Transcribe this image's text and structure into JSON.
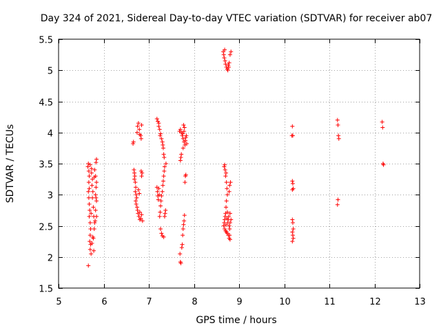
{
  "chart_data": {
    "type": "scatter",
    "title": "Day 324 of 2021, Sidereal Day-to-day VTEC variation (SDTVAR) for receiver ab07",
    "xlabel": "GPS time / hours",
    "ylabel": "SDTVAR / TECUs",
    "xlim": [
      5,
      13
    ],
    "ylim": [
      1.5,
      5.5
    ],
    "xticks": [
      5,
      6,
      7,
      8,
      9,
      10,
      11,
      12,
      13
    ],
    "xtick_labels": [
      "5",
      "6",
      "7",
      "8",
      "9",
      "10",
      "11",
      "12",
      "13"
    ],
    "yticks": [
      1.5,
      2,
      2.5,
      3,
      3.5,
      4,
      4.5,
      5,
      5.5
    ],
    "ytick_labels": [
      "1.5",
      "2",
      "2.5",
      "3",
      "3.5",
      "4",
      "4.5",
      "5",
      "5.5"
    ],
    "grid": true,
    "marker": "+",
    "color": "#ff0000",
    "series": [
      {
        "name": "SDTVAR",
        "points": [
          [
            5.65,
            3.45
          ],
          [
            5.66,
            3.5
          ],
          [
            5.67,
            3.38
          ],
          [
            5.68,
            3.3
          ],
          [
            5.67,
            3.2
          ],
          [
            5.66,
            3.05
          ],
          [
            5.67,
            2.95
          ],
          [
            5.68,
            2.85
          ],
          [
            5.69,
            2.75
          ],
          [
            5.68,
            2.65
          ],
          [
            5.7,
            2.55
          ],
          [
            5.71,
            2.45
          ],
          [
            5.7,
            2.35
          ],
          [
            5.69,
            2.25
          ],
          [
            5.71,
            2.2
          ],
          [
            5.7,
            2.12
          ],
          [
            5.72,
            2.05
          ],
          [
            5.66,
            1.86
          ],
          [
            5.7,
            3.48
          ],
          [
            5.73,
            3.35
          ],
          [
            5.75,
            3.25
          ],
          [
            5.74,
            3.15
          ],
          [
            5.76,
            3.05
          ],
          [
            5.75,
            2.95
          ],
          [
            5.77,
            2.8
          ],
          [
            5.78,
            2.65
          ],
          [
            5.8,
            2.55
          ],
          [
            5.79,
            2.45
          ],
          [
            5.77,
            2.3
          ],
          [
            5.74,
            2.22
          ],
          [
            5.78,
            2.1
          ],
          [
            5.8,
            3.4
          ],
          [
            5.82,
            3.3
          ],
          [
            5.84,
            3.2
          ],
          [
            5.83,
            3.12
          ],
          [
            5.82,
            3.0
          ],
          [
            5.84,
            2.9
          ],
          [
            5.82,
            2.75
          ],
          [
            5.84,
            2.65
          ],
          [
            5.83,
            3.52
          ],
          [
            5.84,
            3.57
          ],
          [
            5.76,
            2.32
          ],
          [
            5.73,
            3.42
          ],
          [
            5.79,
            3.28
          ],
          [
            5.81,
            2.58
          ],
          [
            5.72,
            2.7
          ],
          [
            5.68,
            3.1
          ],
          [
            5.83,
            2.95
          ],
          [
            6.65,
            3.82
          ],
          [
            6.66,
            3.85
          ],
          [
            6.67,
            3.4
          ],
          [
            6.68,
            3.35
          ],
          [
            6.69,
            3.3
          ],
          [
            6.7,
            3.2
          ],
          [
            6.71,
            3.12
          ],
          [
            6.7,
            3.05
          ],
          [
            6.72,
            3.0
          ],
          [
            6.73,
            2.95
          ],
          [
            6.72,
            2.85
          ],
          [
            6.74,
            2.8
          ],
          [
            6.75,
            2.75
          ],
          [
            6.76,
            2.7
          ],
          [
            6.78,
            2.65
          ],
          [
            6.8,
            2.6
          ],
          [
            6.82,
            2.62
          ],
          [
            6.84,
            2.68
          ],
          [
            6.75,
            4.1
          ],
          [
            6.77,
            4.15
          ],
          [
            6.79,
            4.05
          ],
          [
            6.8,
            3.97
          ],
          [
            6.82,
            3.95
          ],
          [
            6.83,
            3.9
          ],
          [
            6.84,
            4.12
          ],
          [
            6.85,
            3.35
          ],
          [
            6.84,
            3.3
          ],
          [
            6.83,
            3.38
          ],
          [
            6.77,
            3.08
          ],
          [
            6.79,
            3.02
          ],
          [
            6.74,
            4.0
          ],
          [
            6.68,
            3.25
          ],
          [
            6.71,
            2.9
          ],
          [
            6.8,
            2.72
          ],
          [
            6.86,
            2.58
          ],
          [
            7.18,
            4.22
          ],
          [
            7.2,
            4.18
          ],
          [
            7.22,
            4.1
          ],
          [
            7.24,
            4.05
          ],
          [
            7.26,
            3.98
          ],
          [
            7.28,
            3.9
          ],
          [
            7.3,
            3.85
          ],
          [
            7.31,
            3.8
          ],
          [
            7.32,
            3.75
          ],
          [
            7.33,
            3.65
          ],
          [
            7.34,
            3.6
          ],
          [
            7.35,
            3.45
          ],
          [
            7.34,
            3.38
          ],
          [
            7.33,
            3.3
          ],
          [
            7.32,
            3.22
          ],
          [
            7.31,
            3.15
          ],
          [
            7.3,
            3.05
          ],
          [
            7.28,
            2.98
          ],
          [
            7.27,
            2.9
          ],
          [
            7.26,
            2.82
          ],
          [
            7.25,
            2.72
          ],
          [
            7.24,
            2.65
          ],
          [
            7.26,
            2.45
          ],
          [
            7.28,
            2.38
          ],
          [
            7.3,
            2.34
          ],
          [
            7.33,
            2.32
          ],
          [
            7.18,
            3.12
          ],
          [
            7.19,
            3.05
          ],
          [
            7.2,
            2.98
          ],
          [
            7.21,
            2.92
          ],
          [
            7.22,
            3.1
          ],
          [
            7.23,
            3.0
          ],
          [
            7.36,
            2.7
          ],
          [
            7.37,
            2.75
          ],
          [
            7.35,
            2.65
          ],
          [
            7.38,
            3.5
          ],
          [
            7.22,
            4.15
          ],
          [
            7.25,
            3.95
          ],
          [
            7.68,
            4.02
          ],
          [
            7.7,
            4.05
          ],
          [
            7.72,
            4.0
          ],
          [
            7.74,
            3.95
          ],
          [
            7.76,
            3.9
          ],
          [
            7.78,
            3.85
          ],
          [
            7.8,
            3.8
          ],
          [
            7.79,
            4.08
          ],
          [
            7.77,
            4.12
          ],
          [
            7.75,
            3.98
          ],
          [
            7.82,
            3.92
          ],
          [
            7.81,
            3.87
          ],
          [
            7.83,
            3.95
          ],
          [
            7.72,
            3.65
          ],
          [
            7.71,
            3.6
          ],
          [
            7.7,
            3.55
          ],
          [
            7.69,
            2.05
          ],
          [
            7.7,
            1.92
          ],
          [
            7.71,
            1.9
          ],
          [
            7.73,
            2.15
          ],
          [
            7.74,
            2.2
          ],
          [
            7.75,
            2.35
          ],
          [
            7.76,
            2.45
          ],
          [
            7.77,
            2.52
          ],
          [
            7.78,
            2.58
          ],
          [
            7.79,
            2.67
          ],
          [
            7.8,
            3.2
          ],
          [
            7.81,
            3.3
          ],
          [
            7.82,
            3.32
          ],
          [
            7.76,
            3.75
          ],
          [
            7.78,
            4.02
          ],
          [
            7.84,
            3.82
          ],
          [
            8.65,
            5.3
          ],
          [
            8.66,
            5.25
          ],
          [
            8.67,
            5.2
          ],
          [
            8.68,
            5.33
          ],
          [
            8.7,
            5.1
          ],
          [
            8.72,
            5.05
          ],
          [
            8.74,
            5.02
          ],
          [
            8.76,
            5.08
          ],
          [
            8.78,
            5.12
          ],
          [
            8.8,
            5.25
          ],
          [
            8.82,
            5.3
          ],
          [
            8.68,
            3.48
          ],
          [
            8.69,
            3.4
          ],
          [
            8.7,
            3.3
          ],
          [
            8.72,
            3.2
          ],
          [
            8.73,
            3.1
          ],
          [
            8.74,
            3.0
          ],
          [
            8.72,
            2.9
          ],
          [
            8.71,
            2.8
          ],
          [
            8.7,
            2.7
          ],
          [
            8.69,
            2.65
          ],
          [
            8.68,
            2.6
          ],
          [
            8.67,
            2.55
          ],
          [
            8.66,
            2.5
          ],
          [
            8.68,
            2.45
          ],
          [
            8.7,
            2.42
          ],
          [
            8.72,
            2.4
          ],
          [
            8.74,
            2.38
          ],
          [
            8.76,
            2.35
          ],
          [
            8.78,
            2.3
          ],
          [
            8.8,
            2.28
          ],
          [
            8.75,
            2.55
          ],
          [
            8.76,
            2.6
          ],
          [
            8.77,
            2.65
          ],
          [
            8.78,
            2.5
          ],
          [
            8.79,
            2.45
          ],
          [
            8.8,
            2.55
          ],
          [
            8.78,
            3.05
          ],
          [
            8.79,
            3.15
          ],
          [
            8.81,
            3.2
          ],
          [
            8.74,
            2.72
          ],
          [
            8.73,
            2.62
          ],
          [
            8.71,
            2.52
          ],
          [
            8.69,
            5.15
          ],
          [
            8.75,
            5.0
          ],
          [
            8.77,
            5.05
          ],
          [
            8.67,
            3.45
          ],
          [
            8.71,
            3.35
          ],
          [
            8.79,
            2.35
          ],
          [
            8.8,
            2.7
          ],
          [
            8.82,
            2.6
          ],
          [
            10.18,
            4.1
          ],
          [
            10.17,
            3.95
          ],
          [
            10.19,
            3.95
          ],
          [
            10.18,
            3.22
          ],
          [
            10.19,
            3.18
          ],
          [
            10.2,
            3.1
          ],
          [
            10.18,
            3.08
          ],
          [
            10.18,
            2.6
          ],
          [
            10.19,
            2.55
          ],
          [
            10.2,
            2.45
          ],
          [
            10.18,
            2.4
          ],
          [
            10.19,
            2.35
          ],
          [
            10.2,
            2.3
          ],
          [
            10.18,
            2.25
          ],
          [
            11.18,
            4.2
          ],
          [
            11.19,
            4.12
          ],
          [
            11.2,
            3.95
          ],
          [
            11.21,
            3.9
          ],
          [
            11.19,
            2.92
          ],
          [
            11.18,
            2.84
          ],
          [
            12.17,
            4.17
          ],
          [
            12.18,
            4.08
          ],
          [
            12.19,
            3.5
          ],
          [
            12.2,
            3.48
          ]
        ]
      }
    ]
  }
}
